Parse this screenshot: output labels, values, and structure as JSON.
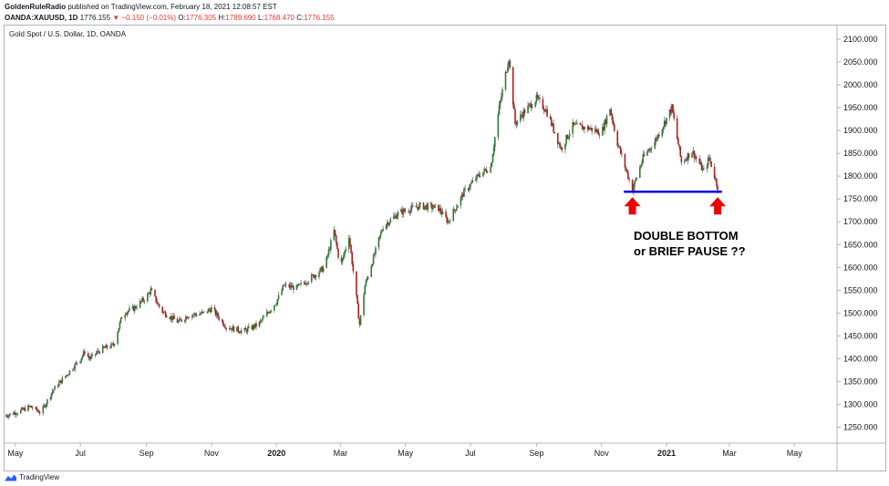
{
  "header": {
    "publisher": "GoldenRuleRadio",
    "published_text": "published on TradingView.com, February 18, 2021 12:08:57 EST",
    "symbol": "OANDA:XAUUSD, 1D",
    "last": "1776.155",
    "change": "▼ −0.150 (−0.01%)",
    "o_label": "O:",
    "o_value": "1776.305",
    "h_label": "H:",
    "h_value": "1789.690",
    "l_label": "L:",
    "l_value": "1768.470",
    "c_label": "C:",
    "c_value": "1776.155"
  },
  "pane_title": "Gold Spot / U.S. Dollar, 1D, OANDA",
  "annotation": {
    "line1": "DOUBLE BOTTOM",
    "line2": "or BRIEF PAUSE ??"
  },
  "footer": {
    "brand": "TradingView"
  },
  "colors": {
    "up": "#26a69a",
    "up_body": "#2e7d32",
    "down": "#b71c1c",
    "wick": "#444444",
    "support_line": "#0000e0",
    "arrow": "#ee0000",
    "axis_text": "#131722"
  },
  "chart_data": {
    "type": "candlestick",
    "title": "Gold Spot / U.S. Dollar, 1D, OANDA",
    "xlabel": "",
    "ylabel": "",
    "ylim": [
      1215,
      2130
    ],
    "y_ticks": [
      "1250.000",
      "1300.000",
      "1350.000",
      "1400.000",
      "1450.000",
      "1500.000",
      "1550.000",
      "1600.000",
      "1650.000",
      "1700.000",
      "1750.000",
      "1800.000",
      "1850.000",
      "1900.000",
      "1950.000",
      "2000.000",
      "2050.000",
      "2100.000"
    ],
    "x_ticks": [
      "May",
      "Jul",
      "Sep",
      "Nov",
      "2020",
      "Mar",
      "May",
      "Jul",
      "Sep",
      "Nov",
      "2021",
      "Mar",
      "May"
    ],
    "x_ticks_bold": [
      "2020",
      "2021"
    ],
    "x_range": [
      "2019-04-20",
      "2021-06-10"
    ],
    "x_tick_dates": [
      "2019-05-01",
      "2019-07-01",
      "2019-09-01",
      "2019-11-01",
      "2020-01-01",
      "2020-03-01",
      "2020-05-01",
      "2020-07-01",
      "2020-09-01",
      "2020-11-01",
      "2021-01-01",
      "2021-03-01",
      "2021-05-01"
    ],
    "price_path": [
      [
        "2019-04-20",
        1274
      ],
      [
        "2019-05-05",
        1285
      ],
      [
        "2019-05-15",
        1295
      ],
      [
        "2019-05-25",
        1282
      ],
      [
        "2019-06-05",
        1330
      ],
      [
        "2019-06-20",
        1370
      ],
      [
        "2019-07-01",
        1400
      ],
      [
        "2019-07-05",
        1415
      ],
      [
        "2019-07-10",
        1400
      ],
      [
        "2019-07-20",
        1420
      ],
      [
        "2019-08-01",
        1430
      ],
      [
        "2019-08-10",
        1500
      ],
      [
        "2019-08-20",
        1510
      ],
      [
        "2019-09-01",
        1535
      ],
      [
        "2019-09-05",
        1550
      ],
      [
        "2019-09-15",
        1505
      ],
      [
        "2019-10-01",
        1480
      ],
      [
        "2019-10-10",
        1495
      ],
      [
        "2019-10-25",
        1500
      ],
      [
        "2019-11-01",
        1510
      ],
      [
        "2019-11-15",
        1470
      ],
      [
        "2019-12-01",
        1460
      ],
      [
        "2019-12-15",
        1475
      ],
      [
        "2020-01-01",
        1525
      ],
      [
        "2020-01-08",
        1560
      ],
      [
        "2020-01-20",
        1555
      ],
      [
        "2020-02-01",
        1575
      ],
      [
        "2020-02-15",
        1600
      ],
      [
        "2020-02-24",
        1680
      ],
      [
        "2020-03-01",
        1600
      ],
      [
        "2020-03-09",
        1670
      ],
      [
        "2020-03-19",
        1475
      ],
      [
        "2020-03-24",
        1560
      ],
      [
        "2020-04-10",
        1690
      ],
      [
        "2020-04-25",
        1720
      ],
      [
        "2020-05-15",
        1735
      ],
      [
        "2020-06-01",
        1730
      ],
      [
        "2020-06-10",
        1700
      ],
      [
        "2020-06-25",
        1765
      ],
      [
        "2020-07-10",
        1805
      ],
      [
        "2020-07-20",
        1820
      ],
      [
        "2020-07-28",
        1950
      ],
      [
        "2020-08-06",
        2060
      ],
      [
        "2020-08-12",
        1915
      ],
      [
        "2020-08-20",
        1940
      ],
      [
        "2020-09-01",
        1970
      ],
      [
        "2020-09-10",
        1945
      ],
      [
        "2020-09-24",
        1860
      ],
      [
        "2020-10-05",
        1910
      ],
      [
        "2020-10-20",
        1905
      ],
      [
        "2020-11-01",
        1895
      ],
      [
        "2020-11-09",
        1950
      ],
      [
        "2020-11-15",
        1880
      ],
      [
        "2020-11-30",
        1770
      ],
      [
        "2020-12-10",
        1840
      ],
      [
        "2020-12-22",
        1880
      ],
      [
        "2021-01-06",
        1950
      ],
      [
        "2021-01-15",
        1830
      ],
      [
        "2021-01-25",
        1855
      ],
      [
        "2021-02-05",
        1810
      ],
      [
        "2021-02-10",
        1840
      ],
      [
        "2021-02-18",
        1776
      ]
    ],
    "support_level": 1766,
    "support_range": [
      "2020-11-22",
      "2021-02-22"
    ],
    "arrow_dates": [
      "2020-11-30",
      "2021-02-18"
    ],
    "last_date": "2021-02-18"
  }
}
